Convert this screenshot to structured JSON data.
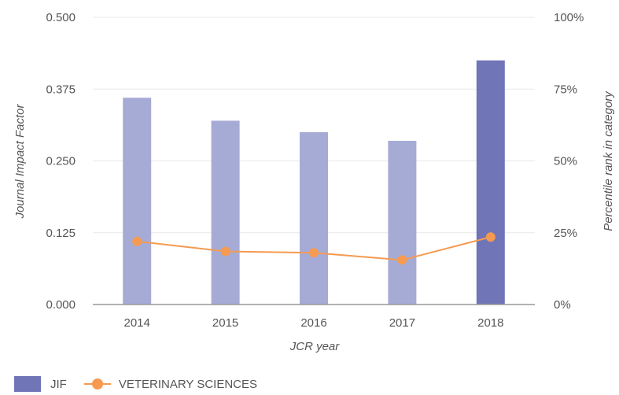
{
  "chart_data": {
    "type": "bar",
    "categories": [
      "2014",
      "2015",
      "2016",
      "2017",
      "2018"
    ],
    "series": [
      {
        "name": "JIF",
        "type": "bar",
        "axis": "left",
        "values": [
          0.36,
          0.32,
          0.3,
          0.285,
          0.425
        ]
      },
      {
        "name": "VETERINARY SCIENCES",
        "type": "line",
        "axis": "right",
        "values": [
          22,
          18.5,
          18,
          15.5,
          23.5
        ]
      }
    ],
    "xlabel": "JCR year",
    "ylabel": "Journal Impact Factor",
    "y2label": "Percentile rank in category",
    "ylim": [
      0,
      0.5
    ],
    "y2lim": [
      0,
      100
    ],
    "yticks": [
      "0.000",
      "0.125",
      "0.250",
      "0.375",
      "0.500"
    ],
    "y2ticks": [
      "0%",
      "25%",
      "50%",
      "75%",
      "100%"
    ],
    "grid": true,
    "legend_position": "bottom-left",
    "colors": {
      "bar": "#a6abd6",
      "bar_highlight": "#7075b8",
      "line": "#f59a50",
      "grid": "#e8e8e8",
      "axis": "#999999"
    }
  },
  "legend": {
    "jif_label": "JIF",
    "cat_label": "VETERINARY SCIENCES"
  }
}
